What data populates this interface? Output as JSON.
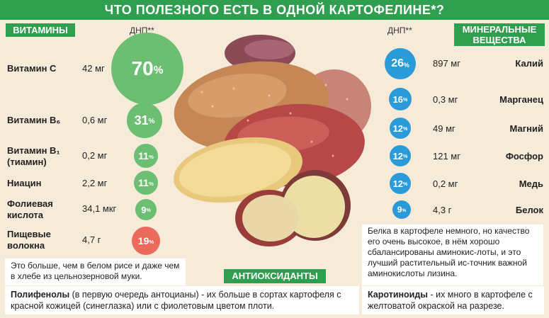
{
  "title": "ЧТО ПОЛЕЗНОГО ЕСТЬ В ОДНОЙ КАРТОФЕЛИНЕ*?",
  "vitamins": {
    "heading": "ВИТАМИНЫ",
    "dnp_label": "ДНП**",
    "items": [
      {
        "name": "Витамин С",
        "amount": "42 мг",
        "percent": "70",
        "color": "#6cbe72"
      },
      {
        "name": "Витамин B₆",
        "amount": "0,6 мг",
        "percent": "31",
        "color": "#6cbe72"
      },
      {
        "name": "Витамин B₁ (тиамин)",
        "amount": "0,2 мг",
        "percent": "11",
        "color": "#6cbe72"
      },
      {
        "name": "Ниацин",
        "amount": "2,2 мг",
        "percent": "11",
        "color": "#6cbe72"
      },
      {
        "name": "Фолиевая кислота",
        "amount": "34,1 мкг",
        "percent": "9",
        "color": "#6cbe72"
      },
      {
        "name": "Пищевые волокна",
        "amount": "4,7 г",
        "percent": "19",
        "color": "#ec6a5c"
      }
    ],
    "note": "Это больше, чем в белом рисе и даже чем в хлебе из цельнозерновой муки."
  },
  "minerals": {
    "heading": "МИНЕРАЛЬНЫЕ ВЕЩЕСТВА",
    "dnp_label": "ДНП**",
    "items": [
      {
        "name": "Калий",
        "amount": "897 мг",
        "percent": "26"
      },
      {
        "name": "Марганец",
        "amount": "0,3 мг",
        "percent": "16"
      },
      {
        "name": "Магний",
        "amount": "49 мг",
        "percent": "12"
      },
      {
        "name": "Фосфор",
        "amount": "121 мг",
        "percent": "12"
      },
      {
        "name": "Медь",
        "amount": "0,2 мг",
        "percent": "12"
      },
      {
        "name": "Белок",
        "amount": "4,3 г",
        "percent": "9"
      }
    ],
    "note": "Белка в картофеле немного, но качество его очень высокое, в нём хорошо сбалансированы аминокис-лоты, и это лучший растительный ис-точник важной аминокислоты лизина."
  },
  "antioxidants": {
    "heading": "АНТИОКСИДАНТЫ",
    "polyphenols_term": "Полифенолы",
    "polyphenols_text": " (в первую очередь антоцианы) - их больше в сортах картофеля с красной кожицей (синеглазка) или с фиолетовым цветом плоти.",
    "carotenoids_term": "Каротиноиды",
    "carotenoids_text": " - их много в картофеле с желтоватой окраской на разрезе."
  },
  "percent_sign": "%",
  "colors": {
    "accent": "#2f9e4e",
    "vitamin": "#6cbe72",
    "fiber": "#ec6a5c",
    "mineral": "#2b9ad8",
    "background": "#f6ebd9"
  }
}
